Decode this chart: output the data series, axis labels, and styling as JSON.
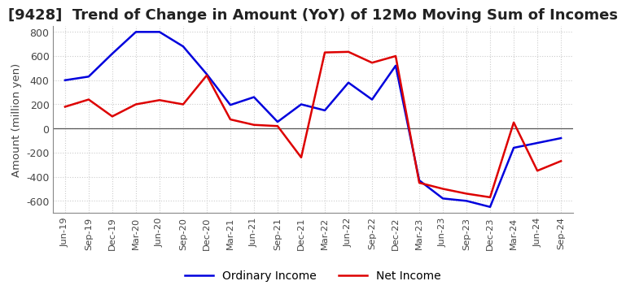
{
  "title": "[9428]  Trend of Change in Amount (YoY) of 12Mo Moving Sum of Incomes",
  "ylabel": "Amount (million yen)",
  "xlabels": [
    "Jun-19",
    "Sep-19",
    "Dec-19",
    "Mar-20",
    "Jun-20",
    "Sep-20",
    "Dec-20",
    "Mar-21",
    "Jun-21",
    "Sep-21",
    "Dec-21",
    "Mar-22",
    "Jun-22",
    "Sep-22",
    "Dec-22",
    "Mar-23",
    "Jun-23",
    "Sep-23",
    "Dec-23",
    "Mar-24",
    "Jun-24",
    "Sep-24"
  ],
  "ordinary_income": [
    400,
    430,
    620,
    800,
    800,
    680,
    450,
    195,
    260,
    55,
    200,
    150,
    380,
    240,
    520,
    -430,
    -580,
    -600,
    -650,
    -160,
    -120,
    -80
  ],
  "net_income": [
    180,
    240,
    100,
    200,
    235,
    200,
    440,
    75,
    30,
    20,
    -240,
    630,
    635,
    545,
    600,
    -450,
    -500,
    -540,
    -570,
    50,
    -350,
    -270
  ],
  "ordinary_color": "#0000dd",
  "net_color": "#dd0000",
  "ylim": [
    -700,
    850
  ],
  "yticks": [
    -600,
    -400,
    -200,
    0,
    200,
    400,
    600,
    800
  ],
  "background_color": "#ffffff",
  "title_fontsize": 13,
  "axis_fontsize": 9,
  "legend_fontsize": 10,
  "grid_color": "#cccccc",
  "grid_style": ":"
}
